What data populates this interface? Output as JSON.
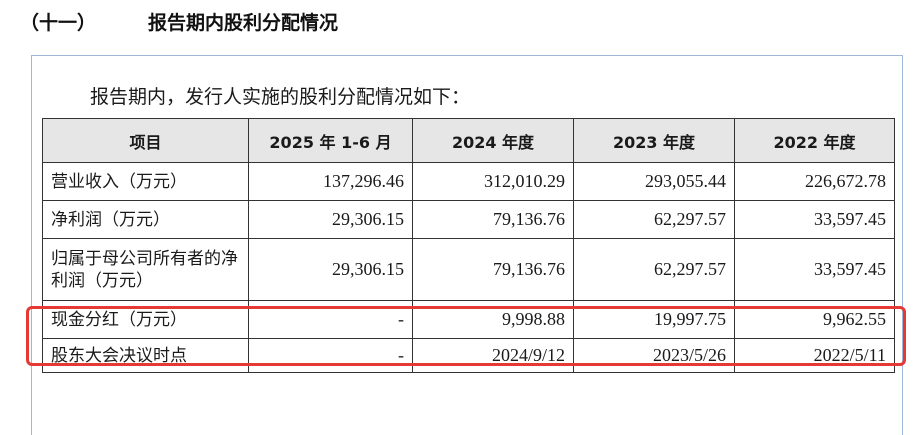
{
  "section": {
    "number": "（十一）",
    "title": "报告期内股利分配情况"
  },
  "intro": "报告期内，发行人实施的股利分配情况如下：",
  "table": {
    "headers": [
      "项目",
      "2025 年 1-6 月",
      "2024 年度",
      "2023 年度",
      "2022 年度"
    ],
    "rows": [
      [
        "营业收入（万元）",
        "137,296.46",
        "312,010.29",
        "293,055.44",
        "226,672.78"
      ],
      [
        "净利润（万元）",
        "29,306.15",
        "79,136.76",
        "62,297.57",
        "33,597.45"
      ],
      [
        "归属于母公司所有者的净利润（万元）",
        "29,306.15",
        "79,136.76",
        "62,297.57",
        "33,597.45"
      ],
      [
        "现金分红（万元）",
        "-",
        "9,998.88",
        "19,997.75",
        "9,962.55"
      ],
      [
        "股东大会决议时点",
        "-",
        "2024/9/12",
        "2023/5/26",
        "2022/5/11"
      ]
    ]
  },
  "colors": {
    "highlight": "#e53935",
    "header_bg": "#e6e6e6",
    "frame": "#9fb8d8"
  }
}
